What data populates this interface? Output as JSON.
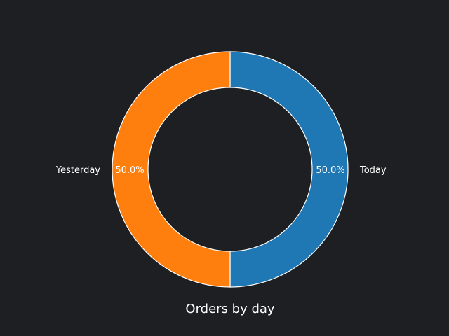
{
  "chart_data": {
    "type": "pie",
    "style": "donut",
    "title": "Orders by day",
    "slices": [
      {
        "label": "Today",
        "value": 50.0,
        "pct_label": "50.0%",
        "color": "#1f77b4"
      },
      {
        "label": "Yesterday",
        "value": 50.0,
        "pct_label": "50.0%",
        "color": "#ff7f0e"
      }
    ],
    "edge_color": "#ffffff",
    "background": "#1e1f22",
    "legend": "none"
  }
}
